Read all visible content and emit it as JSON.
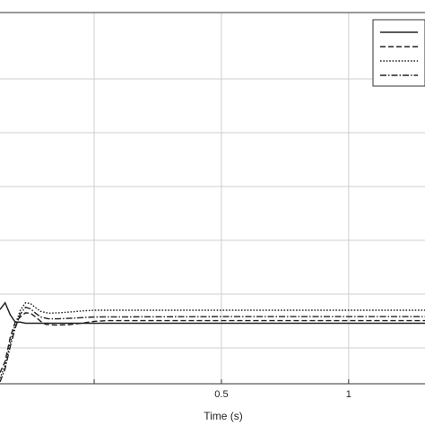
{
  "chart_data": {
    "type": "line",
    "title": "",
    "xlabel": "Time (s)",
    "ylabel": "",
    "xlim": [
      -0.37,
      1.3
    ],
    "ylim": [
      0,
      1
    ],
    "grid": true,
    "legend": {
      "position": "top-right",
      "entries": [
        "",
        "",
        "",
        ""
      ]
    },
    "xticks": [
      {
        "value": 0.5,
        "label": "0.5"
      },
      {
        "value": 1,
        "label": "1"
      }
    ],
    "series": [
      {
        "style": "solid",
        "points": [
          [
            -0.37,
            0.2
          ],
          [
            -0.35,
            0.218
          ],
          [
            -0.33,
            0.186
          ],
          [
            -0.31,
            0.166
          ],
          [
            -0.29,
            0.166
          ],
          [
            -0.27,
            0.163
          ],
          [
            -0.24,
            0.163
          ],
          [
            -0.2,
            0.163
          ],
          [
            -0.1,
            0.163
          ],
          [
            0.0,
            0.163
          ],
          [
            0.5,
            0.163
          ],
          [
            1.0,
            0.163
          ],
          [
            1.3,
            0.163
          ]
        ]
      },
      {
        "style": "dashed",
        "points": [
          [
            -0.37,
            0.03
          ],
          [
            -0.35,
            0.06
          ],
          [
            -0.33,
            0.125
          ],
          [
            -0.31,
            0.166
          ],
          [
            -0.29,
            0.18
          ],
          [
            -0.27,
            0.191
          ],
          [
            -0.25,
            0.19
          ],
          [
            -0.23,
            0.18
          ],
          [
            -0.21,
            0.168
          ],
          [
            -0.19,
            0.16
          ],
          [
            -0.15,
            0.158
          ],
          [
            -0.1,
            0.159
          ],
          [
            -0.05,
            0.163
          ],
          [
            0.0,
            0.168
          ],
          [
            0.05,
            0.17
          ],
          [
            0.1,
            0.17
          ],
          [
            0.5,
            0.17
          ],
          [
            1.0,
            0.17
          ],
          [
            1.3,
            0.17
          ]
        ]
      },
      {
        "style": "dotted",
        "points": [
          [
            -0.37,
            0.015
          ],
          [
            -0.35,
            0.05
          ],
          [
            -0.33,
            0.11
          ],
          [
            -0.31,
            0.16
          ],
          [
            -0.29,
            0.198
          ],
          [
            -0.27,
            0.218
          ],
          [
            -0.25,
            0.216
          ],
          [
            -0.23,
            0.205
          ],
          [
            -0.21,
            0.195
          ],
          [
            -0.18,
            0.19
          ],
          [
            -0.14,
            0.191
          ],
          [
            -0.1,
            0.193
          ],
          [
            -0.05,
            0.196
          ],
          [
            0.0,
            0.198
          ],
          [
            0.5,
            0.198
          ],
          [
            1.0,
            0.198
          ],
          [
            1.3,
            0.198
          ]
        ]
      },
      {
        "style": "dashdot",
        "points": [
          [
            -0.37,
            0.005
          ],
          [
            -0.35,
            0.04
          ],
          [
            -0.33,
            0.1
          ],
          [
            -0.31,
            0.15
          ],
          [
            -0.29,
            0.188
          ],
          [
            -0.27,
            0.206
          ],
          [
            -0.25,
            0.202
          ],
          [
            -0.23,
            0.19
          ],
          [
            -0.21,
            0.18
          ],
          [
            -0.18,
            0.175
          ],
          [
            -0.14,
            0.175
          ],
          [
            -0.1,
            0.176
          ],
          [
            -0.05,
            0.178
          ],
          [
            0.0,
            0.18
          ],
          [
            0.5,
            0.181
          ],
          [
            1.0,
            0.181
          ],
          [
            1.3,
            0.181
          ]
        ]
      }
    ]
  }
}
